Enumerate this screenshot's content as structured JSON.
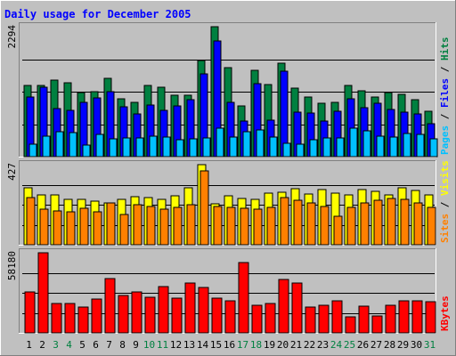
{
  "chart_data": {
    "type": "bar",
    "title": "Daily usage for December 2005",
    "categories": [
      "1",
      "2",
      "3",
      "4",
      "5",
      "6",
      "7",
      "8",
      "9",
      "10",
      "11",
      "12",
      "13",
      "14",
      "15",
      "16",
      "17",
      "18",
      "19",
      "20",
      "21",
      "22",
      "23",
      "24",
      "25",
      "26",
      "27",
      "28",
      "29",
      "30",
      "31"
    ],
    "weekend_days": [
      "3",
      "4",
      "10",
      "11",
      "17",
      "18",
      "24",
      "25",
      "31"
    ],
    "panels": [
      {
        "id": "hits",
        "ymax_label": "2294",
        "ymax": 2294,
        "series": [
          {
            "name": "Hits",
            "color": "#008040",
            "values": [
              1252,
              1252,
              1348,
              1308,
              1133,
              1149,
              1380,
              1022,
              957,
              1261,
              1224,
              1078,
              1085,
              1691,
              2294,
              1568,
              897,
              1529,
              1276,
              1648,
              1212,
              1053,
              938,
              958,
              1264,
              1165,
              1046,
              1126,
              1101,
              1005,
              808
            ]
          },
          {
            "name": "Files",
            "color": "#0000ff",
            "values": [
              1046,
              1229,
              841,
              810,
              962,
              1030,
              1149,
              878,
              751,
              918,
              814,
              891,
              1007,
              1455,
              2046,
              958,
              622,
              1284,
              645,
              1502,
              789,
              768,
              622,
              798,
              1023,
              860,
              950,
              831,
              778,
              760,
              579
            ]
          },
          {
            "name": "Pages",
            "color": "#00c0ff",
            "values": [
              224,
              357,
              439,
              430,
              209,
              391,
              312,
              331,
              328,
              354,
              342,
              296,
              314,
              324,
              499,
              342,
              439,
              471,
              347,
              241,
              218,
              296,
              331,
              331,
              503,
              451,
              358,
              340,
              401,
              397,
              316
            ]
          }
        ],
        "legend": [
          "Pages",
          "Files",
          "Hits"
        ]
      },
      {
        "id": "visits",
        "ymax_label": "427",
        "ymax": 427,
        "series": [
          {
            "name": "Visits",
            "color": "#ffff00",
            "values": [
              303,
              268,
              268,
              243,
              243,
              231,
              222,
              243,
              257,
              252,
              243,
              262,
              303,
              427,
              216,
              259,
              249,
              244,
              276,
              281,
              298,
              269,
              296,
              275,
              265,
              294,
              287,
              266,
              303,
              291,
              265
            ]
          },
          {
            "name": "Sites",
            "color": "#ff8000",
            "values": [
              251,
              190,
              182,
              175,
              194,
              177,
              222,
              159,
              214,
              205,
              190,
              198,
              214,
              393,
              206,
              198,
              194,
              191,
              201,
              252,
              235,
              222,
              206,
              153,
              198,
              224,
              236,
              246,
              243,
              222,
              199
            ]
          }
        ],
        "legend": [
          "Sites",
          "Visits"
        ]
      },
      {
        "id": "kbytes",
        "ymax_label": "58180",
        "ymax": 58180,
        "series": [
          {
            "name": "KBytes",
            "color": "#ff0000",
            "values": [
              29440,
              58180,
              21520,
              21590,
              18840,
              24780,
              39640,
              27350,
              29910,
              26140,
              33650,
              25520,
              36390,
              33210,
              25520,
              22980,
              50770,
              19720,
              21180,
              38910,
              36040,
              18840,
              19850,
              23320,
              11570,
              19320,
              12540,
              19870,
              23320,
              23560,
              22480
            ]
          }
        ],
        "legend": [
          "KBytes"
        ]
      }
    ],
    "legend_separator": " / "
  }
}
